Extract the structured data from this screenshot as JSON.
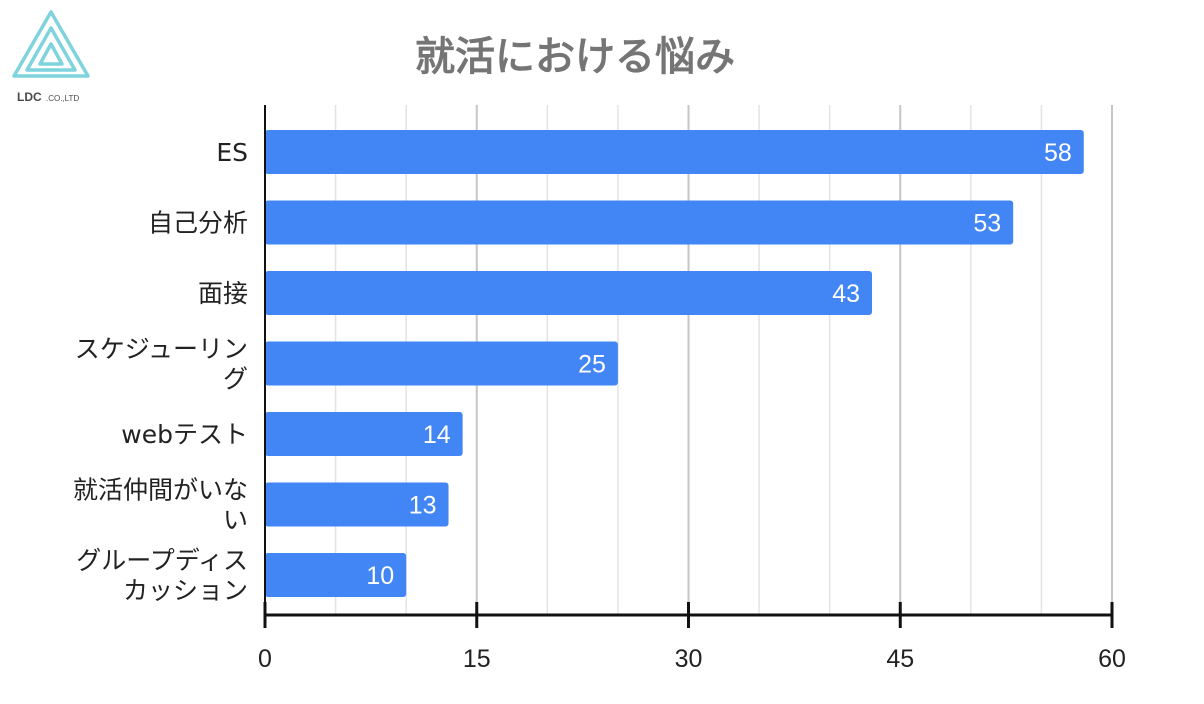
{
  "logo": {
    "text": "LDC",
    "suffix": ".CO.,LTD",
    "color": "#7fd3dd"
  },
  "chart_data": {
    "type": "bar",
    "orientation": "horizontal",
    "title": "就活における悩み",
    "categories": [
      [
        "ES"
      ],
      [
        "自己分析"
      ],
      [
        "面接"
      ],
      [
        "スケジューリン",
        "グ"
      ],
      [
        "webテスト"
      ],
      [
        "就活仲間がいな",
        "い"
      ],
      [
        "グループディス",
        "カッション"
      ]
    ],
    "values": [
      58,
      53,
      43,
      25,
      14,
      13,
      10
    ],
    "data_labels": [
      "58",
      "53",
      "43",
      "25",
      "14",
      "13",
      "10"
    ],
    "xlim": [
      0,
      60
    ],
    "major_ticks": [
      0,
      15,
      30,
      45,
      60
    ],
    "minor_step": 5,
    "grid": true,
    "legend": "none",
    "bar_color": "#4285f4",
    "title_color": "#757575"
  }
}
